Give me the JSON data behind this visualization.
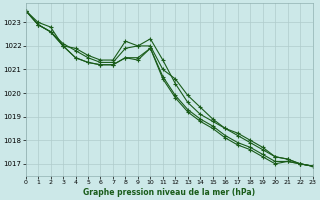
{
  "title": "Graphe pression niveau de la mer (hPa)",
  "bg_color": "#cce8e8",
  "grid_color": "#b0cccc",
  "line_color": "#1a5c1a",
  "xlim": [
    0,
    23
  ],
  "ylim": [
    1016.5,
    1023.8
  ],
  "yticks": [
    1017,
    1018,
    1019,
    1020,
    1021,
    1022,
    1023
  ],
  "xticks": [
    0,
    1,
    2,
    3,
    4,
    5,
    6,
    7,
    8,
    9,
    10,
    11,
    12,
    13,
    14,
    15,
    16,
    17,
    18,
    19,
    20,
    21,
    22,
    23
  ],
  "series1": [
    1023.5,
    1023.0,
    1022.8,
    1022.0,
    1021.5,
    1021.3,
    1021.2,
    1021.2,
    1021.5,
    1021.4,
    1021.9,
    1020.6,
    1019.8,
    1019.2,
    1018.8,
    1018.5,
    1018.1,
    1017.8,
    1017.6,
    1017.3,
    1017.0,
    1017.1,
    1017.0,
    1016.9
  ],
  "series2": [
    1023.5,
    1022.9,
    1022.6,
    1022.0,
    1021.9,
    1021.6,
    1021.4,
    1021.4,
    1022.2,
    1022.0,
    1022.3,
    1021.4,
    1020.4,
    1019.6,
    1019.1,
    1018.8,
    1018.5,
    1018.3,
    1018.0,
    1017.7,
    1017.3,
    1017.2,
    1017.0,
    1016.9
  ],
  "series3": [
    1023.5,
    1022.9,
    1022.6,
    1022.1,
    1021.8,
    1021.5,
    1021.3,
    1021.3,
    1021.9,
    1022.0,
    1022.0,
    1021.0,
    1020.6,
    1019.9,
    1019.4,
    1018.9,
    1018.5,
    1018.2,
    1017.9,
    1017.6,
    1017.3,
    1017.2,
    1017.0,
    1016.9
  ],
  "series4": [
    1023.5,
    1022.9,
    1022.6,
    1022.0,
    1021.5,
    1021.3,
    1021.2,
    1021.2,
    1021.5,
    1021.5,
    1021.9,
    1020.7,
    1019.9,
    1019.3,
    1018.9,
    1018.6,
    1018.2,
    1017.9,
    1017.7,
    1017.4,
    1017.1,
    1017.1,
    1017.0,
    1016.9
  ]
}
